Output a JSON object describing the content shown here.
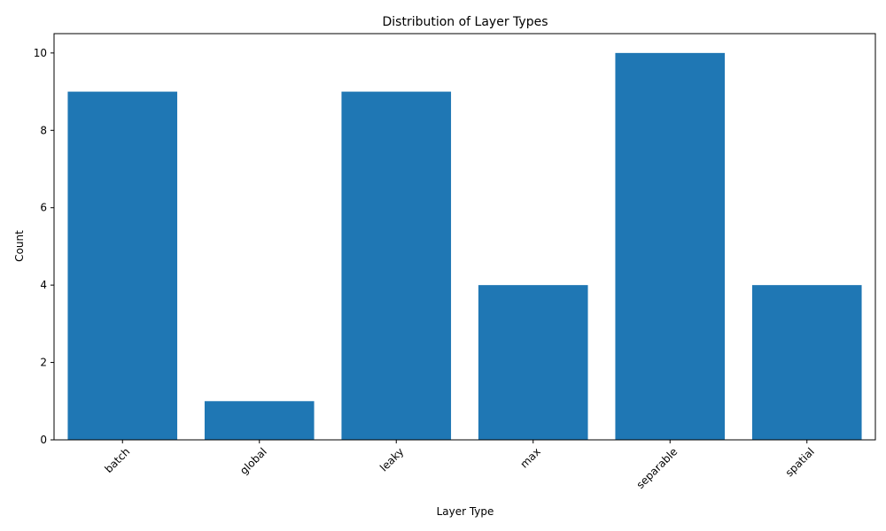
{
  "chart_data": {
    "type": "bar",
    "title": "Distribution of Layer Types",
    "xlabel": "Layer Type",
    "ylabel": "Count",
    "categories": [
      "batch",
      "global",
      "leaky",
      "max",
      "separable",
      "spatial"
    ],
    "values": [
      9,
      1,
      9,
      4,
      10,
      4
    ],
    "ylim": [
      0,
      10.5
    ],
    "yticks": [
      0,
      2,
      4,
      6,
      8,
      10
    ],
    "grid": false,
    "bar_color": "#1f77b4",
    "xtick_rotation_deg": 45
  }
}
